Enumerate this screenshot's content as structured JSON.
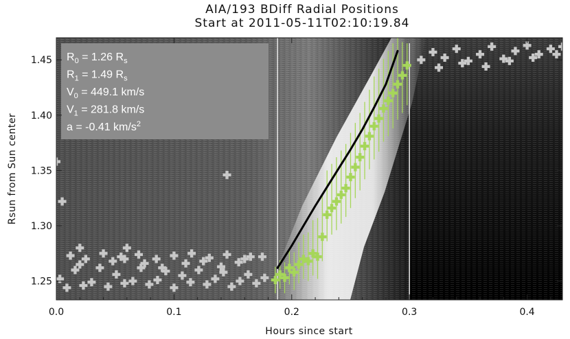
{
  "chart_data": {
    "type": "scatter",
    "title_lines": [
      "AIA/193 BDiff Radial Positions",
      "Start at 2011-05-11T02:10:19.84"
    ],
    "xlabel": "Hours since start",
    "ylabel": "Rsun from Sun center",
    "xlim": [
      0.0,
      0.43
    ],
    "ylim": [
      1.233,
      1.47
    ],
    "xticks": [
      "0.0",
      "0.1",
      "0.2",
      "0.3",
      "0.4"
    ],
    "xtick_values": [
      0.0,
      0.1,
      0.2,
      0.3,
      0.4
    ],
    "yticks": [
      "1.25",
      "1.30",
      "1.35",
      "1.40",
      "1.45"
    ],
    "ytick_values": [
      1.25,
      1.3,
      1.35,
      1.4,
      1.45
    ],
    "vertical_lines": [
      0.188,
      0.3
    ],
    "fit_parameters": [
      {
        "base": "R",
        "sub": "0",
        "text": " = 1.26 R",
        "unit_sub": "s",
        "sup": ""
      },
      {
        "base": "R",
        "sub": "1",
        "text": " = 1.49 R",
        "unit_sub": "s",
        "sup": ""
      },
      {
        "base": "V",
        "sub": "0",
        "text": " = 449.1 km/s",
        "unit_sub": "",
        "sup": ""
      },
      {
        "base": "V",
        "sub": "1",
        "text": " = 281.8 km/s",
        "unit_sub": "",
        "sup": ""
      },
      {
        "base": "a",
        "sub": "",
        "text": " = -0.41 km/s",
        "unit_sub": "",
        "sup": "2"
      }
    ],
    "fit_curve": {
      "color": "#000000",
      "x": [
        0.188,
        0.2,
        0.21,
        0.22,
        0.23,
        0.24,
        0.25,
        0.26,
        0.27,
        0.28,
        0.29
      ],
      "y": [
        1.262,
        1.282,
        1.3,
        1.318,
        1.335,
        1.352,
        1.369,
        1.387,
        1.407,
        1.428,
        1.458
      ]
    },
    "green_series": {
      "color": "#a6d65a",
      "x": [
        0.186,
        0.19,
        0.194,
        0.198,
        0.202,
        0.206,
        0.21,
        0.214,
        0.218,
        0.222,
        0.226,
        0.23,
        0.234,
        0.238,
        0.242,
        0.246,
        0.25,
        0.254,
        0.258,
        0.262,
        0.266,
        0.27,
        0.274,
        0.278,
        0.282,
        0.286,
        0.29,
        0.294,
        0.298
      ],
      "y": [
        1.251,
        1.256,
        1.253,
        1.262,
        1.258,
        1.265,
        1.27,
        1.268,
        1.275,
        1.272,
        1.29,
        1.31,
        1.316,
        1.322,
        1.328,
        1.334,
        1.344,
        1.353,
        1.362,
        1.372,
        1.381,
        1.39,
        1.397,
        1.406,
        1.413,
        1.42,
        1.428,
        1.436,
        1.445
      ],
      "err_low": [
        0.012,
        0.013,
        0.014,
        0.015,
        0.016,
        0.017,
        0.018,
        0.018,
        0.02,
        0.02,
        0.022,
        0.024,
        0.024,
        0.026,
        0.026,
        0.026,
        0.028,
        0.028,
        0.03,
        0.03,
        0.03,
        0.03,
        0.03,
        0.03,
        0.032,
        0.032,
        0.032,
        0.034,
        0.036
      ],
      "err_high": [
        0.012,
        0.013,
        0.014,
        0.016,
        0.018,
        0.02,
        0.022,
        0.026,
        0.03,
        0.035,
        0.038,
        0.04,
        0.04,
        0.04,
        0.04,
        0.04,
        0.04,
        0.04,
        0.04,
        0.04,
        0.042,
        0.045,
        0.045,
        0.045,
        0.045,
        0.045,
        0.042,
        0.03,
        0.02
      ]
    },
    "gray_points": {
      "color": "#c8c8c8",
      "x": [
        0.003,
        0.009,
        0.016,
        0.023,
        0.03,
        0.037,
        0.044,
        0.051,
        0.058,
        0.065,
        0.072,
        0.079,
        0.086,
        0.093,
        0.1,
        0.107,
        0.114,
        0.121,
        0.128,
        0.135,
        0.142,
        0.149,
        0.156,
        0.163,
        0.17,
        0.177,
        0.012,
        0.025,
        0.04,
        0.055,
        0.07,
        0.085,
        0.1,
        0.115,
        0.13,
        0.145,
        0.16,
        0.175,
        0.02,
        0.048,
        0.06,
        0.075,
        0.09,
        0.11,
        0.125,
        0.14,
        0.155,
        0.0,
        0.005,
        0.145,
        0.165,
        0.02,
        0.058,
        0.32,
        0.33,
        0.34,
        0.35,
        0.36,
        0.37,
        0.38,
        0.39,
        0.4,
        0.41,
        0.42,
        0.43,
        0.325,
        0.345,
        0.365,
        0.385,
        0.405,
        0.425,
        0.31
      ],
      "y": [
        1.252,
        1.244,
        1.26,
        1.246,
        1.249,
        1.262,
        1.245,
        1.256,
        1.248,
        1.25,
        1.262,
        1.247,
        1.251,
        1.259,
        1.244,
        1.255,
        1.249,
        1.26,
        1.247,
        1.252,
        1.258,
        1.245,
        1.25,
        1.256,
        1.248,
        1.253,
        1.273,
        1.27,
        1.275,
        1.272,
        1.274,
        1.27,
        1.273,
        1.275,
        1.271,
        1.274,
        1.27,
        1.272,
        1.265,
        1.268,
        1.28,
        1.266,
        1.262,
        1.266,
        1.268,
        1.263,
        1.267,
        1.358,
        1.322,
        1.346,
        1.272,
        1.28,
        1.27,
        1.457,
        1.452,
        1.46,
        1.449,
        1.455,
        1.462,
        1.451,
        1.458,
        1.463,
        1.455,
        1.46,
        1.462,
        1.443,
        1.447,
        1.444,
        1.449,
        1.452,
        1.455,
        1.45
      ]
    }
  }
}
